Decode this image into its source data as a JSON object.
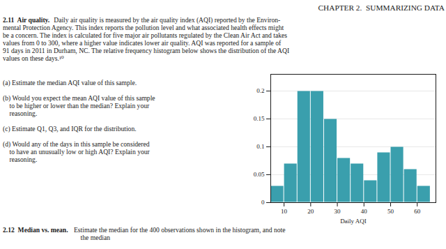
{
  "chart_data": {
    "type": "histogram",
    "title": "CHAPTER 2.  SUMMARIZING DATA",
    "annotations": [
      "2.11  Air quality.",
      "Daily air quality is measured by the air quality index (AQI) reported by the Environ-",
      "mental Protection Agency. This index reports the pollution level and what associated health effects might",
      "be a concern. The index is calculated for five major air pollutants regulated by the Clean Air Act and takes",
      "values from 0 to 300, where a higher value indicates lower air quality. AQI was reported for a sample of",
      "91 days in 2011 in Durham, NC. The relative frequency histogram below shows the distribution of the AQI",
      "values on these days.¹⁰",
      "(a) Estimate the median AQI value of this sample.",
      "(b) Would you expect the mean AQI value of this sample",
      "    to be higher or lower than the median? Explain your",
      "    reasoning.",
      "(c) Estimate Q1, Q3, and IQR for the distribution.",
      "(d) Would any of the days in this sample be considered",
      "    to have an unusually low or high AQI? Explain your",
      "    reasoning.",
      "2.12  Median vs. mean.",
      "Estimate the median for the 400 observations shown in the histogram, and note",
      "    the median"
    ],
    "xlabel": "Daily AQI",
    "bins": [
      5,
      10,
      15,
      20,
      25,
      30,
      35,
      40,
      45,
      50,
      55,
      60,
      65
    ],
    "values": [
      0.03,
      0.07,
      0.2,
      0.2,
      0.15,
      0.08,
      0.07,
      0.04,
      0.09,
      0.1,
      0.06,
      0.03
    ],
    "color": "#3a9fad",
    "xlim": [
      5,
      67
    ],
    "ylim": [
      0,
      0.23
    ],
    "xticks": [
      10,
      20,
      30,
      40,
      50,
      60
    ],
    "yticks": [
      0,
      0.05,
      0.1,
      0.15,
      0.2
    ],
    "grid": true
  }
}
